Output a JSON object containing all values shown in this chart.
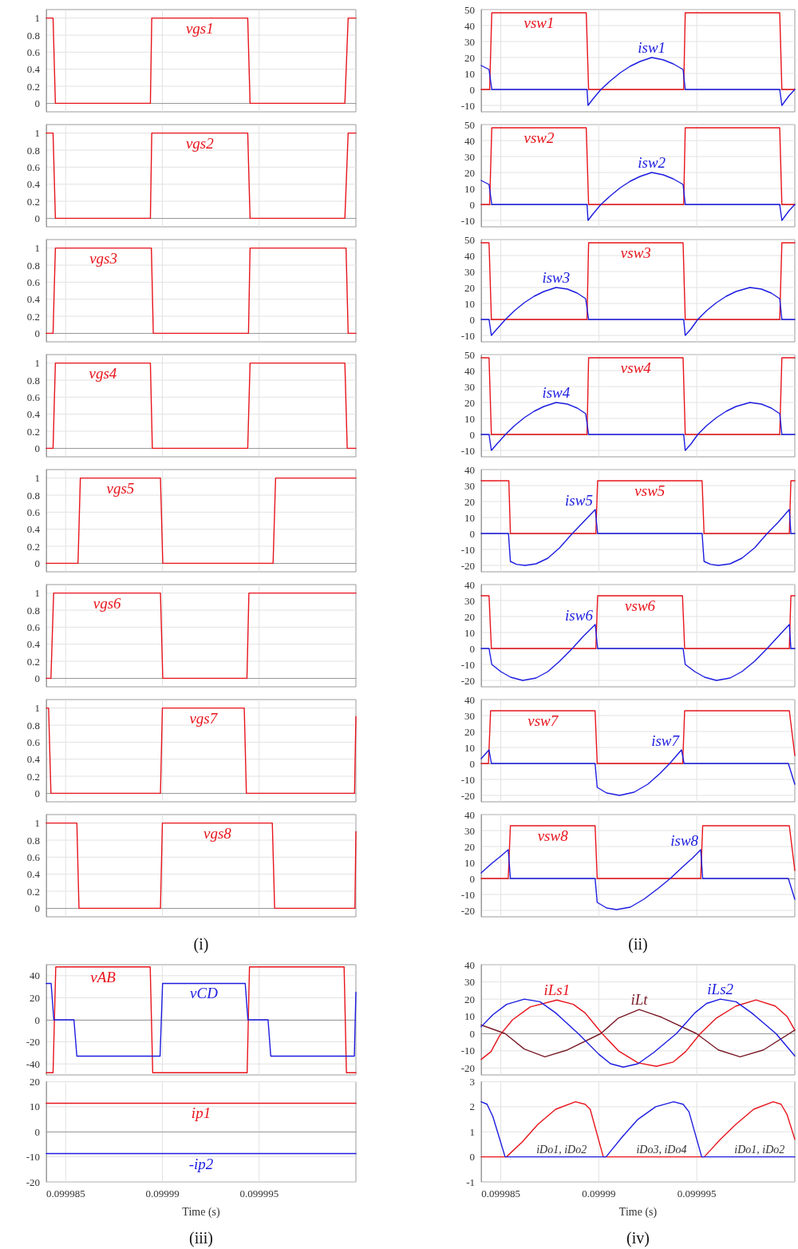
{
  "chart_data": [
    {
      "type": "line",
      "xlim": [
        0.099984,
        0.1
      ],
      "xticks": [
        0.099985,
        0.09999,
        0.099995
      ],
      "ylim": [
        -0.1,
        1.1
      ],
      "yticks": [
        0,
        0.2,
        0.4,
        0.6,
        0.8,
        1
      ],
      "grid": true,
      "tick_labels": "y",
      "series": [
        {
          "name": "vgs1",
          "color": "#e8141c",
          "x": [
            0.099984,
            0.09998435,
            0.09998447,
            0.09998938,
            0.09998945,
            0.09999441,
            0.09999453,
            0.09999943,
            0.0999996,
            0.1
          ],
          "values": [
            1,
            1,
            0,
            0,
            1,
            1,
            0,
            0,
            1,
            1
          ]
        }
      ]
    },
    {
      "type": "line",
      "xlim": [
        0.099984,
        0.1
      ],
      "xticks": [
        0.099985,
        0.09999,
        0.099995
      ],
      "ylim": [
        -0.1,
        1.1
      ],
      "yticks": [
        0,
        0.2,
        0.4,
        0.6,
        0.8,
        1
      ],
      "grid": true,
      "tick_labels": "y",
      "series": [
        {
          "name": "vgs2",
          "color": "#e8141c",
          "x": [
            0.099984,
            0.09998435,
            0.09998447,
            0.09998938,
            0.09998945,
            0.09999441,
            0.09999453,
            0.09999943,
            0.0999996,
            0.1
          ],
          "values": [
            1,
            1,
            0,
            0,
            1,
            1,
            0,
            0,
            1,
            1
          ]
        }
      ]
    },
    {
      "type": "line",
      "xlim": [
        0.099984,
        0.1
      ],
      "xticks": [
        0.099985,
        0.09999,
        0.099995
      ],
      "ylim": [
        -0.1,
        1.1
      ],
      "yticks": [
        0,
        0.2,
        0.4,
        0.6,
        0.8,
        1
      ],
      "grid": true,
      "tick_labels": "y",
      "series": [
        {
          "name": "vgs3",
          "color": "#e8141c",
          "x": [
            0.099984,
            0.09998435,
            0.09998447,
            0.09998943,
            0.09998953,
            0.09999445,
            0.09999453,
            0.09999949,
            0.0999996,
            0.1
          ],
          "values": [
            0,
            0,
            1,
            1,
            0,
            0,
            1,
            1,
            0,
            0
          ]
        }
      ]
    },
    {
      "type": "line",
      "xlim": [
        0.099984,
        0.1
      ],
      "xticks": [
        0.099985,
        0.09999,
        0.099995
      ],
      "ylim": [
        -0.1,
        1.1
      ],
      "yticks": [
        0,
        0.2,
        0.4,
        0.6,
        0.8,
        1
      ],
      "grid": true,
      "tick_labels": "y",
      "series": [
        {
          "name": "vgs4",
          "color": "#e8141c",
          "x": [
            0.099984,
            0.09998435,
            0.09998447,
            0.09998938,
            0.09998948,
            0.09999441,
            0.09999453,
            0.09999943,
            0.09999955,
            0.1
          ],
          "values": [
            0,
            0,
            1,
            1,
            0,
            0,
            1,
            1,
            0,
            0
          ]
        }
      ]
    },
    {
      "type": "line",
      "xlim": [
        0.099984,
        0.1
      ],
      "xticks": [
        0.099985,
        0.09999,
        0.099995
      ],
      "ylim": [
        -0.1,
        1.1
      ],
      "yticks": [
        0,
        0.2,
        0.4,
        0.6,
        0.8,
        1
      ],
      "grid": true,
      "tick_labels": "y",
      "series": [
        {
          "name": "vgs5",
          "color": "#e8141c",
          "x": [
            0.099984,
            0.09998564,
            0.09998576,
            0.0999899,
            0.09999002,
            0.09999572,
            0.09999585,
            0.1
          ],
          "values": [
            0,
            0,
            1,
            1,
            0,
            0,
            1,
            1
          ]
        }
      ]
    },
    {
      "type": "line",
      "xlim": [
        0.099984,
        0.1
      ],
      "xticks": [
        0.099985,
        0.09999,
        0.099995
      ],
      "ylim": [
        -0.1,
        1.1
      ],
      "yticks": [
        0,
        0.2,
        0.4,
        0.6,
        0.8,
        1
      ],
      "grid": true,
      "tick_labels": "y",
      "series": [
        {
          "name": "vgs6",
          "color": "#e8141c",
          "x": [
            0.099984,
            0.09998424,
            0.09998438,
            0.0999899,
            0.09999002,
            0.09999437,
            0.09999447,
            0.1
          ],
          "values": [
            0,
            0,
            1,
            1,
            0,
            0,
            1,
            1
          ]
        }
      ]
    },
    {
      "type": "line",
      "xlim": [
        0.099984,
        0.1
      ],
      "xticks": [
        0.099985,
        0.09999,
        0.099995
      ],
      "ylim": [
        -0.1,
        1.1
      ],
      "yticks": [
        0,
        0.2,
        0.4,
        0.6,
        0.8,
        1
      ],
      "grid": true,
      "tick_labels": "y",
      "series": [
        {
          "name": "vgs7",
          "color": "#e8141c",
          "x": [
            0.099984,
            0.09998412,
            0.09998424,
            0.0999899,
            0.09999,
            0.09999423,
            0.09999434,
            0.09999993,
            0.1
          ],
          "values": [
            1,
            1,
            0,
            0,
            1,
            1,
            0,
            0,
            0.9
          ]
        }
      ]
    },
    {
      "type": "line",
      "xlim": [
        0.099984,
        0.1
      ],
      "xticks": [
        0.099985,
        0.09999,
        0.099995
      ],
      "ylim": [
        -0.1,
        1.1
      ],
      "yticks": [
        0,
        0.2,
        0.4,
        0.6,
        0.8,
        1
      ],
      "grid": true,
      "tick_labels": "y",
      "annotations": [
        "(i)"
      ],
      "series": [
        {
          "name": "vgs8",
          "color": "#e8141c",
          "x": [
            0.099984,
            0.09998558,
            0.09998569,
            0.0999899,
            0.09999,
            0.09999568,
            0.0999958,
            0.09999995,
            0.1
          ],
          "values": [
            1,
            1,
            0,
            0,
            1,
            1,
            0,
            0,
            0.9
          ]
        }
      ]
    },
    {
      "type": "line",
      "xlim": [
        0.099984,
        0.1
      ],
      "xticks": [
        0.099985,
        0.09999,
        0.099995
      ],
      "ylim": [
        -14,
        50
      ],
      "yticks": [
        -10,
        0,
        10,
        20,
        30,
        40,
        50
      ],
      "grid": true,
      "tick_labels": "y",
      "series": [
        {
          "name": "vsw1",
          "color": "#e8141c",
          "x": [
            0.099984,
            0.09998443,
            0.09998454,
            0.09998936,
            0.09998948,
            0.09999433,
            0.09999441,
            0.09999923,
            0.09999934,
            0.1
          ],
          "values": [
            0,
            0,
            48,
            48,
            0,
            0,
            48,
            48,
            0,
            0
          ]
        },
        {
          "name": "isw1",
          "color": "#1c1ce0",
          "x": [
            0.099984,
            0.0999844,
            0.09998454,
            0.0999894,
            0.09998945,
            0.0999897,
            0.09999011,
            0.0999906,
            0.0999911,
            0.0999916,
            0.0999921,
            0.0999927,
            0.0999933,
            0.0999938,
            0.0999943,
            0.09999441,
            0.09999923,
            0.09999934,
            0.0999997,
            0.1
          ],
          "values": [
            15,
            12.5,
            0,
            0,
            -10,
            -6,
            0,
            5.5,
            10.5,
            14.5,
            17.5,
            20,
            18.5,
            16,
            12.5,
            0,
            0,
            -10,
            -4,
            0
          ]
        }
      ]
    },
    {
      "type": "line",
      "xlim": [
        0.099984,
        0.1
      ],
      "xticks": [
        0.099985,
        0.09999,
        0.099995
      ],
      "ylim": [
        -14,
        50
      ],
      "yticks": [
        -10,
        0,
        10,
        20,
        30,
        40,
        50
      ],
      "grid": true,
      "tick_labels": "y",
      "series": [
        {
          "name": "vsw2",
          "color": "#e8141c",
          "x": [
            0.099984,
            0.09998443,
            0.09998454,
            0.09998936,
            0.09998948,
            0.09999433,
            0.09999441,
            0.09999923,
            0.09999934,
            0.1
          ],
          "values": [
            0,
            0,
            48,
            48,
            0,
            0,
            48,
            48,
            0,
            0
          ]
        },
        {
          "name": "isw2",
          "color": "#1c1ce0",
          "x": [
            0.099984,
            0.0999844,
            0.09998454,
            0.0999894,
            0.09998945,
            0.0999897,
            0.09999011,
            0.0999906,
            0.0999911,
            0.0999916,
            0.0999921,
            0.0999927,
            0.0999933,
            0.0999938,
            0.0999943,
            0.09999441,
            0.09999923,
            0.09999934,
            0.0999997,
            0.1
          ],
          "values": [
            15,
            12.5,
            0,
            0,
            -10,
            -6,
            0,
            5.5,
            10.5,
            14.5,
            17.5,
            20,
            18.5,
            16,
            12.5,
            0,
            0,
            -10,
            -4,
            0
          ]
        }
      ]
    },
    {
      "type": "line",
      "xlim": [
        0.099984,
        0.1
      ],
      "xticks": [
        0.099985,
        0.09999,
        0.099995
      ],
      "ylim": [
        -14,
        50
      ],
      "yticks": [
        -10,
        0,
        10,
        20,
        30,
        40,
        50
      ],
      "grid": true,
      "tick_labels": "y",
      "series": [
        {
          "name": "vsw3",
          "color": "#e8141c",
          "x": [
            0.099984,
            0.0999844,
            0.09998452,
            0.0999894,
            0.09998948,
            0.0999943,
            0.09999441,
            0.09999923,
            0.09999934,
            0.1
          ],
          "values": [
            48,
            48,
            0,
            0,
            48,
            48,
            0,
            0,
            48,
            48
          ]
        },
        {
          "name": "isw3",
          "color": "#1c1ce0",
          "x": [
            0.099984,
            0.0999844,
            0.09998452,
            0.0999848,
            0.09998524,
            0.0999857,
            0.0999862,
            0.0999867,
            0.0999872,
            0.09998782,
            0.0999884,
            0.0999889,
            0.09998933,
            0.09998948,
            0.09999433,
            0.09999441,
            0.0999947,
            0.09999505,
            0.0999955,
            0.099996,
            0.0999965,
            0.099997,
            0.09999771,
            0.0999983,
            0.0999988,
            0.09999923,
            0.09999934,
            0.1
          ],
          "values": [
            0,
            0,
            -10,
            -6,
            0,
            5.5,
            10.5,
            14.5,
            17.5,
            20,
            19,
            16.5,
            13,
            0,
            0,
            -10,
            -6,
            0,
            5.5,
            10.5,
            14.5,
            17.5,
            20,
            19,
            16.5,
            13,
            0,
            0
          ]
        }
      ]
    },
    {
      "type": "line",
      "xlim": [
        0.099984,
        0.1
      ],
      "xticks": [
        0.099985,
        0.09999,
        0.099995
      ],
      "ylim": [
        -14,
        50
      ],
      "yticks": [
        -10,
        0,
        10,
        20,
        30,
        40,
        50
      ],
      "grid": true,
      "tick_labels": "y",
      "series": [
        {
          "name": "vsw4",
          "color": "#e8141c",
          "x": [
            0.099984,
            0.0999844,
            0.09998452,
            0.0999894,
            0.09998948,
            0.0999943,
            0.09999441,
            0.09999923,
            0.09999934,
            0.1
          ],
          "values": [
            48,
            48,
            0,
            0,
            48,
            48,
            0,
            0,
            48,
            48
          ]
        },
        {
          "name": "isw4",
          "color": "#1c1ce0",
          "x": [
            0.099984,
            0.0999844,
            0.09998452,
            0.0999848,
            0.09998524,
            0.0999857,
            0.0999862,
            0.0999867,
            0.0999872,
            0.09998782,
            0.0999884,
            0.0999889,
            0.09998933,
            0.09998948,
            0.09999433,
            0.09999441,
            0.0999947,
            0.09999505,
            0.0999955,
            0.099996,
            0.0999965,
            0.099997,
            0.09999771,
            0.0999983,
            0.0999988,
            0.09999923,
            0.09999934,
            0.1
          ],
          "values": [
            0,
            0,
            -10,
            -6,
            0,
            5.5,
            10.5,
            14.5,
            17.5,
            20,
            19,
            16.5,
            13,
            0,
            0,
            -10,
            -6,
            0,
            5.5,
            10.5,
            14.5,
            17.5,
            20,
            19,
            16.5,
            13,
            0,
            0
          ]
        }
      ]
    },
    {
      "type": "line",
      "xlim": [
        0.099984,
        0.1
      ],
      "xticks": [
        0.099985,
        0.09999,
        0.099995
      ],
      "ylim": [
        -24,
        40
      ],
      "yticks": [
        -20,
        -10,
        0,
        10,
        20,
        30,
        40
      ],
      "grid": true,
      "tick_labels": "y",
      "series": [
        {
          "name": "vsw5",
          "color": "#e8141c",
          "x": [
            0.099984,
            0.09998541,
            0.09998549,
            0.09998985,
            0.09998994,
            0.09999527,
            0.09999537,
            0.09999972,
            0.0999998,
            0.1
          ],
          "values": [
            33,
            33,
            0,
            0,
            33,
            33,
            0,
            0,
            33,
            33
          ]
        },
        {
          "name": "isw5",
          "color": "#1c1ce0",
          "x": [
            0.099984,
            0.09998539,
            0.09998549,
            0.0999858,
            0.09998624,
            0.0999868,
            0.0999874,
            0.099988,
            0.09998865,
            0.0999892,
            0.09998982,
            0.09998994,
            0.09999527,
            0.09999537,
            0.0999957,
            0.0999961,
            0.0999967,
            0.0999973,
            0.09999795,
            0.09999859,
            0.09999915,
            0.09999972,
            0.0999998,
            0.1
          ],
          "values": [
            0,
            0,
            -17.5,
            -19.3,
            -20,
            -19,
            -15.5,
            -9,
            0,
            7,
            15,
            0,
            0,
            -17.5,
            -19.3,
            -20,
            -19,
            -15.5,
            -9,
            0,
            7,
            15,
            0,
            0
          ]
        }
      ]
    },
    {
      "type": "line",
      "xlim": [
        0.099984,
        0.1
      ],
      "xticks": [
        0.099985,
        0.09999,
        0.099995
      ],
      "ylim": [
        -24,
        40
      ],
      "yticks": [
        -20,
        -10,
        0,
        10,
        20,
        30,
        40
      ],
      "grid": true,
      "tick_labels": "y",
      "series": [
        {
          "name": "vsw6",
          "color": "#e8141c",
          "x": [
            0.099984,
            0.0999844,
            0.09998452,
            0.09998985,
            0.09998994,
            0.09999427,
            0.09999438,
            0.09999972,
            0.0999998,
            0.1
          ],
          "values": [
            33,
            33,
            0,
            0,
            33,
            33,
            0,
            0,
            33,
            33
          ]
        },
        {
          "name": "isw6",
          "color": "#1c1ce0",
          "x": [
            0.099984,
            0.0999844,
            0.09998454,
            0.099985,
            0.0999855,
            0.09998612,
            0.0999868,
            0.0999874,
            0.099988,
            0.09998865,
            0.0999892,
            0.09998982,
            0.09998994,
            0.0999943,
            0.09999441,
            0.0999949,
            0.0999954,
            0.099996,
            0.0999967,
            0.0999973,
            0.09999795,
            0.09999859,
            0.09999915,
            0.09999972,
            0.0999998,
            0.1
          ],
          "values": [
            0,
            0,
            -10,
            -14.5,
            -18,
            -20,
            -18.5,
            -14.5,
            -8,
            0,
            7.5,
            15,
            0,
            0,
            -10,
            -14.5,
            -18,
            -20,
            -18.5,
            -14.5,
            -8,
            0,
            7.5,
            15,
            0,
            0
          ]
        }
      ]
    },
    {
      "type": "line",
      "xlim": [
        0.099984,
        0.1
      ],
      "xticks": [
        0.099985,
        0.09999,
        0.099995
      ],
      "ylim": [
        -24,
        40
      ],
      "yticks": [
        -20,
        -10,
        0,
        10,
        20,
        30,
        40
      ],
      "grid": true,
      "tick_labels": "y",
      "series": [
        {
          "name": "vsw7",
          "color": "#e8141c",
          "x": [
            0.099984,
            0.09998437,
            0.09998448,
            0.09998981,
            0.09998992,
            0.09999428,
            0.09999438,
            0.09999972,
            0.1
          ],
          "values": [
            0,
            0,
            33,
            33,
            0,
            0,
            33,
            33,
            5
          ]
        },
        {
          "name": "isw7",
          "color": "#1c1ce0",
          "x": [
            0.099984,
            0.0999844,
            0.09998452,
            0.09998981,
            0.09998992,
            0.0999904,
            0.09999106,
            0.0999918,
            0.0999925,
            0.0999931,
            0.09999362,
            0.09999422,
            0.09999435,
            0.09999967,
            0.1
          ],
          "values": [
            3,
            8.5,
            0,
            0,
            -15,
            -18.5,
            -20,
            -18,
            -13,
            -6.5,
            0,
            8.5,
            0,
            0,
            -13
          ]
        }
      ]
    },
    {
      "type": "line",
      "xlim": [
        0.099984,
        0.1
      ],
      "xticks": [
        0.099985,
        0.09999,
        0.099995
      ],
      "ylim": [
        -24,
        40
      ],
      "yticks": [
        -20,
        -10,
        0,
        10,
        20,
        30,
        40
      ],
      "grid": true,
      "tick_labels": "y",
      "annotations": [
        "(ii)"
      ],
      "series": [
        {
          "name": "vsw8",
          "color": "#e8141c",
          "x": [
            0.099984,
            0.09998538,
            0.09998549,
            0.09998981,
            0.09998992,
            0.0999952,
            0.0999953,
            0.09999972,
            0.1
          ],
          "values": [
            0,
            0,
            33,
            33,
            0,
            0,
            33,
            33,
            5
          ]
        },
        {
          "name": "isw8",
          "color": "#1c1ce0",
          "x": [
            0.099984,
            0.0999845,
            0.099985,
            0.09998538,
            0.09998549,
            0.09998981,
            0.09998992,
            0.0999904,
            0.0999909,
            0.0999916,
            0.0999923,
            0.099993,
            0.09999365,
            0.0999943,
            0.0999948,
            0.0999952,
            0.0999953,
            0.09999967,
            0.1
          ],
          "values": [
            3.5,
            9,
            14,
            18,
            0,
            0,
            -15,
            -18.5,
            -19.5,
            -18,
            -13,
            -6.5,
            0,
            7.5,
            13,
            18,
            0,
            0,
            -13
          ]
        }
      ]
    },
    {
      "type": "line",
      "xlim": [
        0.099984,
        0.1
      ],
      "xticks": [
        0.099985,
        0.09999,
        0.099995
      ],
      "ylim": [
        -50,
        50
      ],
      "yticks": [
        -40,
        -20,
        0,
        20,
        40
      ],
      "grid": true,
      "tick_labels": "y",
      "series": [
        {
          "name": "vAB",
          "color": "#e8141c",
          "x": [
            0.099984,
            0.09998435,
            0.09998449,
            0.09998937,
            0.0999895,
            0.09999438,
            0.0999945,
            0.09999939,
            0.09999951,
            0.1
          ],
          "values": [
            -48,
            -48,
            48,
            48,
            -48,
            -48,
            48,
            48,
            -48,
            -48
          ]
        },
        {
          "name": "vCD",
          "color": "#1c1ce0",
          "x": [
            0.099984,
            0.09998425,
            0.09998439,
            0.09998543,
            0.09998558,
            0.09998988,
            0.09999001,
            0.09999428,
            0.09999442,
            0.09999546,
            0.0999956,
            0.09999992,
            0.1
          ],
          "values": [
            33,
            33,
            0,
            0,
            -33,
            -33,
            33,
            33,
            0,
            0,
            -33,
            -33,
            25
          ]
        }
      ]
    },
    {
      "type": "line",
      "xlim": [
        0.099984,
        0.1
      ],
      "xticks": [
        0.099985,
        0.09999,
        0.099995
      ],
      "ylim": [
        -20,
        20
      ],
      "yticks": [
        -20,
        -10,
        0,
        10,
        20
      ],
      "grid": true,
      "xlabel": "Time (s)",
      "annotations": [
        "(iii)"
      ],
      "series": [
        {
          "name": "ip1",
          "color": "#e8141c",
          "x": [
            0.099984,
            0.1
          ],
          "values": [
            11.4,
            11.4
          ]
        },
        {
          "name": "-ip2",
          "color": "#1c1ce0",
          "x": [
            0.099984,
            0.1
          ],
          "values": [
            -8.7,
            -8.7
          ]
        }
      ]
    },
    {
      "type": "line",
      "xlim": [
        0.099984,
        0.1
      ],
      "xticks": [
        0.099985,
        0.09999,
        0.099995
      ],
      "ylim": [
        -24,
        40
      ],
      "yticks": [
        -20,
        -10,
        0,
        10,
        20,
        30,
        40
      ],
      "grid": true,
      "tick_labels": "y",
      "series": [
        {
          "name": "iLs1",
          "color": "#e8141c",
          "x": [
            0.099984,
            0.0999845,
            0.09998495,
            0.0999856,
            0.0999865,
            0.09998786,
            0.0999887,
            0.0999893,
            0.09999017,
            0.099991,
            0.099992,
            0.09999294,
            0.0999938,
            0.09999443,
            0.09999518,
            0.099996,
            0.099997,
            0.09999802,
            0.099999,
            0.0999996,
            0.1
          ],
          "values": [
            -15,
            -10.5,
            -1,
            8,
            15.5,
            19.5,
            17,
            12,
            0,
            -10,
            -17,
            -19,
            -16.5,
            -10.5,
            0,
            9,
            16,
            19.5,
            16,
            10,
            2
          ]
        },
        {
          "name": "iLt",
          "color": "#7a1c28",
          "x": [
            0.099984,
            0.09998522,
            0.0999862,
            0.09998725,
            0.0999884,
            0.0999901,
            0.099991,
            0.09999206,
            0.0999932,
            0.09999498,
            0.0999961,
            0.09999721,
            0.0999984,
            0.1
          ],
          "values": [
            5,
            0,
            -9,
            -13.5,
            -9.5,
            0,
            9,
            14,
            9.5,
            0,
            -9.5,
            -13.5,
            -9.5,
            2
          ]
        },
        {
          "name": "iLs2",
          "color": "#1c1ce0",
          "x": [
            0.099984,
            0.0999846,
            0.0999853,
            0.0999862,
            0.099987,
            0.0999878,
            0.09998895,
            0.09999,
            0.0999906,
            0.09999125,
            0.099992,
            0.0999928,
            0.09999396,
            0.0999949,
            0.0999955,
            0.0999962,
            0.099997,
            0.0999978,
            0.09999904,
            0.1
          ],
          "values": [
            4,
            11,
            17,
            20,
            18.5,
            12,
            0,
            -12,
            -17.5,
            -19.5,
            -17.5,
            -11,
            0,
            12,
            17.5,
            20,
            18.5,
            12,
            0,
            -13
          ]
        }
      ]
    },
    {
      "type": "line",
      "xlim": [
        0.099984,
        0.1
      ],
      "xticks": [
        0.099985,
        0.09999,
        0.099995
      ],
      "ylim": [
        -1,
        3
      ],
      "yticks": [
        -1,
        0,
        1,
        2,
        3
      ],
      "grid": true,
      "xlabel": "Time (s)",
      "annotations": [
        {
          "text": "iDo1, iDo2",
          "x": 0.0999881,
          "y": 0
        },
        {
          "text": "iDo3, iDo4",
          "x": 0.0999932,
          "y": 0
        },
        {
          "text": "iDo1, iDo2",
          "x": 0.0999982,
          "y": 0
        },
        "(iv)"
      ],
      "series": [
        {
          "color": "#e8141c",
          "x": [
            0.099984,
            0.09998529,
            0.0999861,
            0.0999869,
            0.0999878,
            0.09998881,
            0.0999893,
            0.09998956,
            0.09999023,
            0.09999538,
            0.0999962,
            0.099997,
            0.0999979,
            0.0999989,
            0.0999993,
            0.0999996,
            0.1
          ],
          "values": [
            0,
            0,
            0.6,
            1.3,
            1.9,
            2.2,
            2.1,
            1.9,
            0,
            0,
            0.7,
            1.3,
            1.9,
            2.2,
            2.1,
            1.7,
            0.7
          ]
        },
        {
          "color": "#1c1ce0",
          "x": [
            0.099984,
            0.0999843,
            0.0999846,
            0.09998522,
            0.09999037,
            0.0999912,
            0.099992,
            0.0999929,
            0.09999382,
            0.0999943,
            0.0999946,
            0.09999525,
            0.1
          ],
          "values": [
            2.2,
            2.1,
            1.6,
            0,
            0,
            0.8,
            1.5,
            2,
            2.2,
            2.1,
            1.8,
            0,
            0
          ]
        }
      ]
    }
  ]
}
